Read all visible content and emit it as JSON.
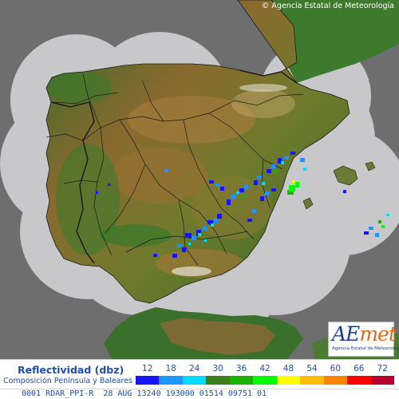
{
  "copyright": "© Agencia Estatal de Meteorología",
  "logo": {
    "word_part1": "AE",
    "word_part2": "met",
    "subtitle": "Agencia Estatal de Meteorología"
  },
  "legend": {
    "title": "Reflectividad (dbz)",
    "subtitle": "Composición Península y Baleares",
    "scale": [
      {
        "label": "12",
        "color": "#1414ff"
      },
      {
        "label": "18",
        "color": "#1e96ff"
      },
      {
        "label": "24",
        "color": "#00dcff"
      },
      {
        "label": "30",
        "color": "#3c7d1e"
      },
      {
        "label": "36",
        "color": "#19b400"
      },
      {
        "label": "42",
        "color": "#00ff00"
      },
      {
        "label": "48",
        "color": "#ffff00"
      },
      {
        "label": "54",
        "color": "#ffbe00"
      },
      {
        "label": "60",
        "color": "#ff8200"
      },
      {
        "label": "66",
        "color": "#ff0000"
      },
      {
        "label": "72",
        "color": "#b4002d"
      }
    ]
  },
  "status_line": "0001 RDAR_PPI-R  28 AUG 13240 193000 01514 09751 01",
  "colors": {
    "outside_coverage": "#6e6e6e",
    "coverage_area": "#c8c8ca",
    "terrain_low": "#2f6e2b",
    "terrain_high": "#8b5e2a",
    "borders": "#1a1a1a"
  }
}
